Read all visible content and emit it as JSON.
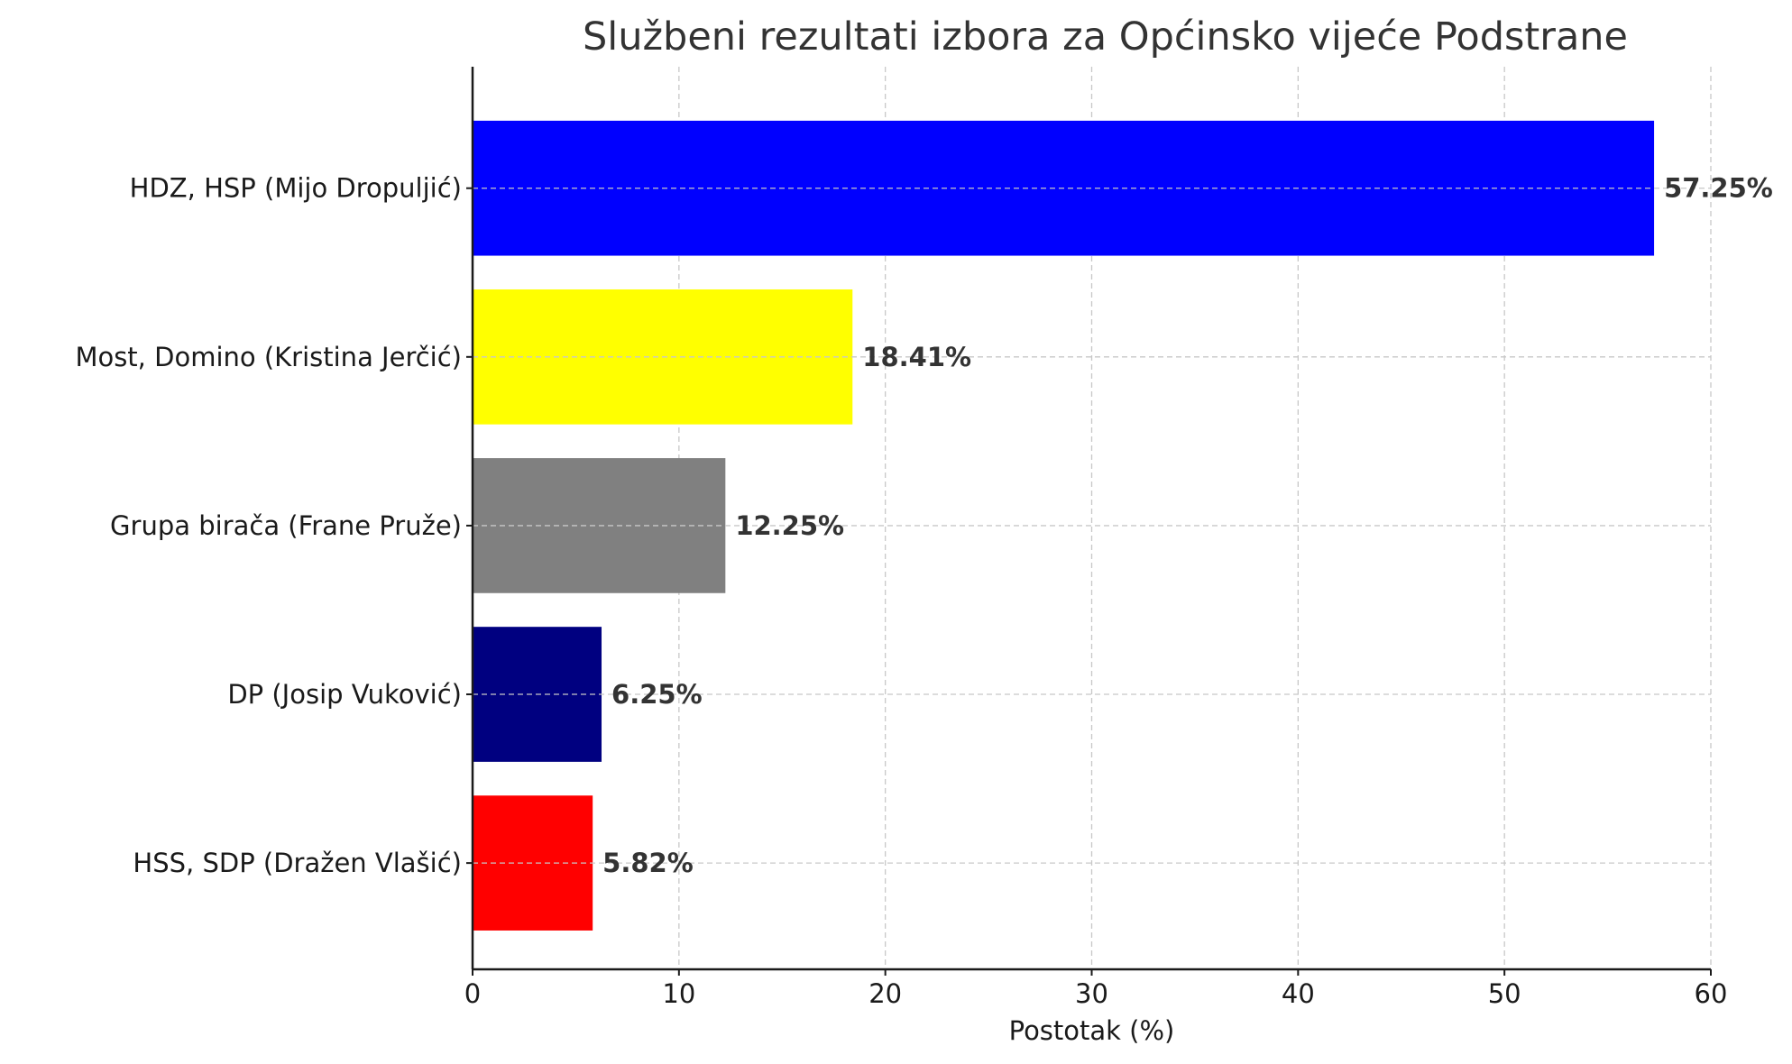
{
  "chart_data": {
    "type": "bar",
    "orientation": "horizontal",
    "title": "Službeni rezultati izbora za Općinsko vijeće Podstrane",
    "xlabel": "Postotak (%)",
    "ylabel": "",
    "xlim": [
      0,
      60
    ],
    "xticks": [
      0,
      10,
      20,
      30,
      40,
      50,
      60
    ],
    "grid": true,
    "categories": [
      "HDZ, HSP (Mijo Dropuljić)",
      "Most, Domino (Kristina Jerčić)",
      "Grupa birača (Frane Pruže)",
      "DP (Josip Vuković)",
      "HSS, SDP (Dražen Vlašić)"
    ],
    "values": [
      57.25,
      18.41,
      12.25,
      6.25,
      5.82
    ],
    "value_labels": [
      "57.25%",
      "18.41%",
      "12.25%",
      "6.25%",
      "5.82%"
    ],
    "colors": [
      "#0000ff",
      "#ffff00",
      "#808080",
      "#000080",
      "#ff0000"
    ]
  }
}
